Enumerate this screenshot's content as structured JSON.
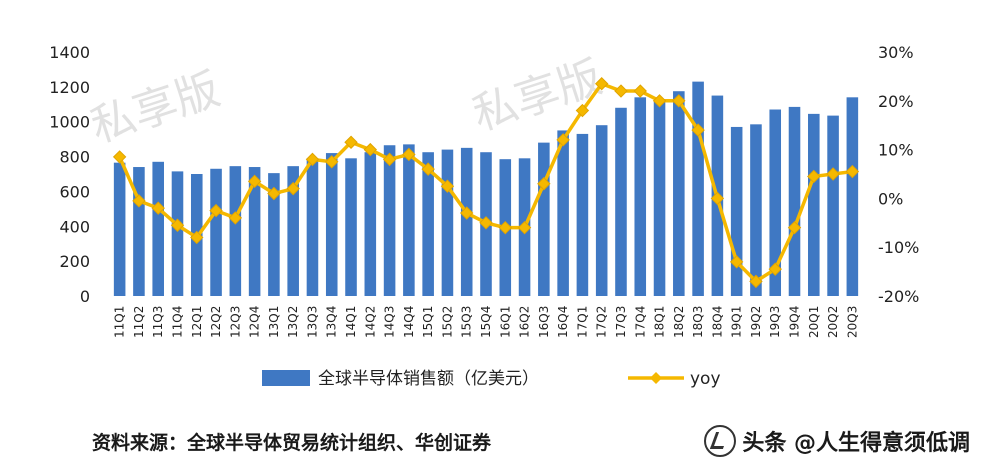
{
  "chart_data": {
    "type": "bar+line",
    "categories": [
      "11Q1",
      "11Q2",
      "11Q3",
      "11Q4",
      "12Q1",
      "12Q2",
      "12Q3",
      "12Q4",
      "13Q1",
      "13Q2",
      "13Q3",
      "13Q4",
      "14Q1",
      "14Q2",
      "14Q3",
      "14Q4",
      "15Q1",
      "15Q2",
      "15Q3",
      "15Q4",
      "16Q1",
      "16Q2",
      "16Q3",
      "16Q4",
      "17Q1",
      "17Q2",
      "17Q3",
      "17Q4",
      "18Q1",
      "18Q2",
      "18Q3",
      "18Q4",
      "19Q1",
      "19Q2",
      "19Q3",
      "19Q4",
      "20Q1",
      "20Q2",
      "20Q3"
    ],
    "series": [
      {
        "name": "全球半导体销售额（亿美元）",
        "kind": "bar",
        "axis": "left",
        "color": "#3f78c3",
        "values": [
          765,
          740,
          770,
          715,
          700,
          730,
          745,
          740,
          705,
          745,
          790,
          820,
          790,
          825,
          865,
          870,
          825,
          840,
          850,
          825,
          785,
          790,
          880,
          950,
          930,
          980,
          1080,
          1140,
          1120,
          1175,
          1230,
          1150,
          970,
          985,
          1070,
          1085,
          1045,
          1035,
          1140
        ]
      },
      {
        "name": "yoy",
        "kind": "line",
        "axis": "right",
        "color": "#f5b800",
        "values": [
          8.5,
          -0.5,
          -2,
          -5.5,
          -8,
          -2.5,
          -4,
          3.5,
          1,
          2,
          8,
          7.5,
          11.5,
          10,
          8,
          9,
          6,
          2.5,
          -3,
          -5,
          -6,
          -6,
          3,
          12,
          18,
          23.5,
          22,
          22,
          20,
          20,
          14,
          0,
          -13,
          -17,
          -14.5,
          -6,
          4.5,
          5,
          5.5
        ]
      }
    ],
    "ylim_left": [
      0,
      1400
    ],
    "yticks_left": [
      "0",
      "200",
      "400",
      "600",
      "800",
      "1000",
      "1200",
      "1400"
    ],
    "ylim_right": [
      -20,
      30
    ],
    "yticks_right": [
      "-20%",
      "-10%",
      "0%",
      "10%",
      "20%",
      "30%"
    ],
    "grid": false,
    "legend_position": "bottom"
  },
  "source_text": "资料来源：全球半导体贸易统计组织、华创证券",
  "watermark": "私享版",
  "brand_text": "头条 @人生得意须低调"
}
